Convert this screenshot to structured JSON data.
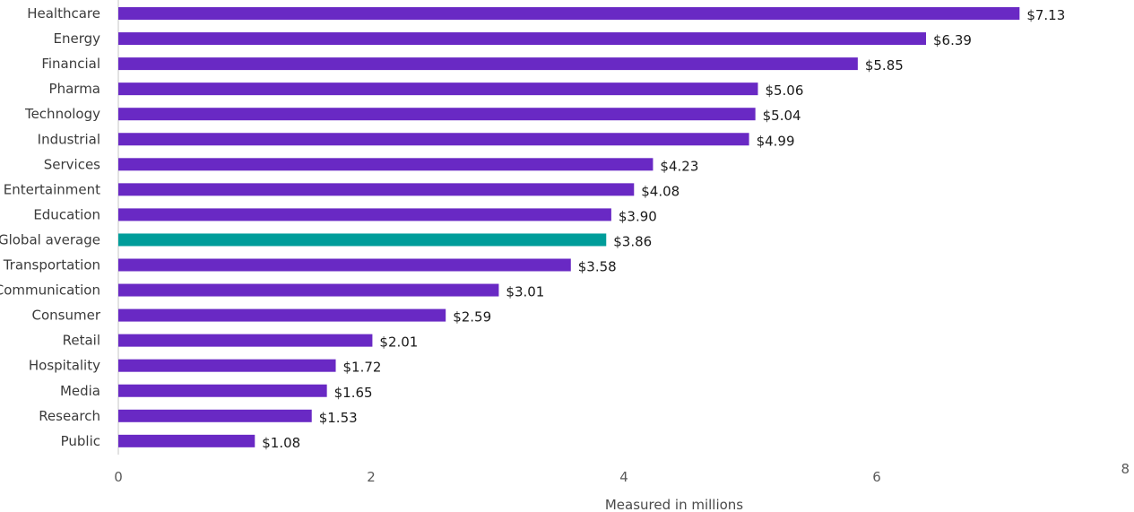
{
  "chart_data": {
    "type": "bar",
    "orientation": "horizontal",
    "xlabel": "Measured in millions",
    "ylabel": "",
    "xlim": [
      0,
      8
    ],
    "x_ticks": [
      0,
      2,
      4,
      6,
      8
    ],
    "value_prefix": "$",
    "grid": false,
    "categories": [
      "Healthcare",
      "Energy",
      "Financial",
      "Pharma",
      "Technology",
      "Industrial",
      "Services",
      "Entertainment",
      "Education",
      "Global average",
      "Transportation",
      "Communication",
      "Consumer",
      "Retail",
      "Hospitality",
      "Media",
      "Research",
      "Public"
    ],
    "values": [
      7.13,
      6.39,
      5.85,
      5.06,
      5.04,
      4.99,
      4.23,
      4.08,
      3.9,
      3.86,
      3.58,
      3.01,
      2.59,
      2.01,
      1.72,
      1.65,
      1.53,
      1.08
    ],
    "value_labels": [
      "$7.13",
      "$6.39",
      "$5.85",
      "$5.06",
      "$5.04",
      "$4.99",
      "$4.23",
      "$4.08",
      "$3.90",
      "$3.86",
      "$3.58",
      "$3.01",
      "$2.59",
      "$2.01",
      "$1.72",
      "$1.65",
      "$1.53",
      "$1.08"
    ],
    "highlight_category": "Global average",
    "colors": {
      "bar": "#6929c4",
      "highlight": "#009d9a",
      "axis": "#c6c6c6"
    }
  }
}
